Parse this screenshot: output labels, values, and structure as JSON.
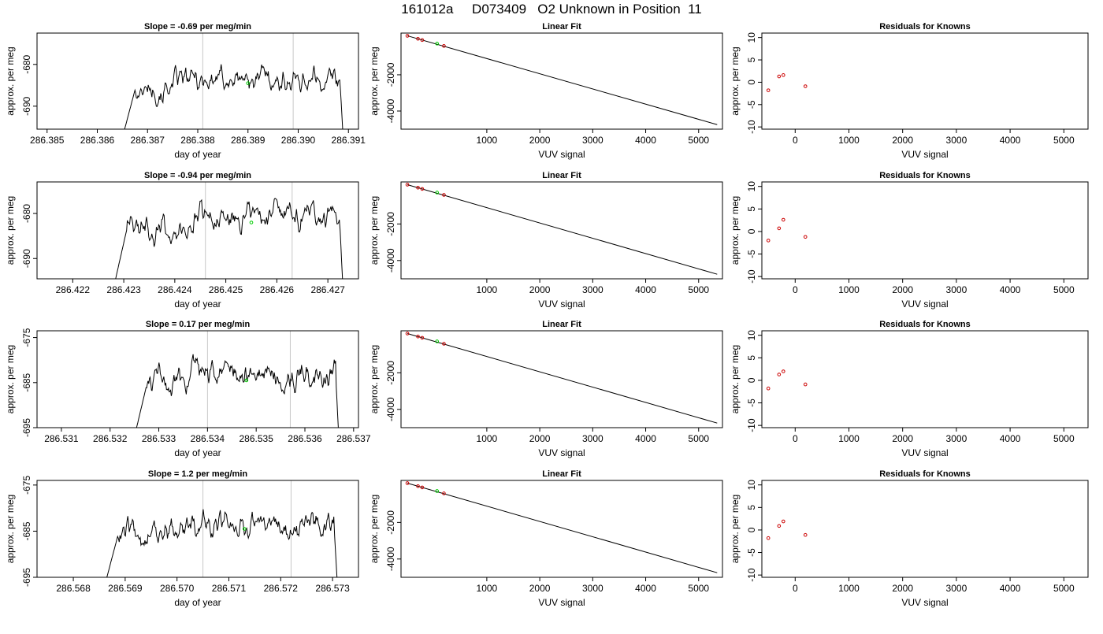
{
  "title": "161012a     D073409   O2 Unknown in Position  11",
  "colors": {
    "trace": "#000000",
    "unknown": "#00cc00",
    "known": "#cc0000",
    "cycle_line": "#c8c8c8",
    "fit_line": "#000000"
  },
  "chart_data": [
    {
      "row": 1,
      "time_panel": {
        "type": "line",
        "title": "Slope =  -0.69  per meg/min",
        "xlabel": "day of year",
        "ylabel": "approx. per meg",
        "xlim": [
          286.3848,
          286.3912
        ],
        "ylim": [
          -695.5,
          -672.5
        ],
        "xticks": [
          "286.385",
          "286.386",
          "286.387",
          "286.388",
          "286.389",
          "286.390",
          "286.391"
        ],
        "yticks": [
          "-680",
          "-690"
        ],
        "trace_start": 286.3865,
        "trace_end": 286.3909,
        "vlines": [
          286.3881,
          286.3899
        ],
        "unknown_point": [
          286.389,
          -684.5
        ]
      },
      "fit_panel": {
        "type": "scatter",
        "title": "Linear Fit",
        "xlabel": "VUV signal",
        "ylabel": "approx. per meg",
        "xlim": [
          -620,
          5450
        ],
        "ylim": [
          -5000,
          300
        ],
        "xticks": [
          "1000",
          "2000",
          "3000",
          "4000",
          "5000"
        ],
        "yticks": [
          "-2000",
          "-4000"
        ],
        "fit_line": [
          [
            -500,
            150
          ],
          [
            5350,
            -4750
          ]
        ],
        "knowns": [
          [
            -500,
            150
          ],
          [
            -300,
            -15
          ],
          [
            -220,
            -85
          ],
          [
            190,
            -410
          ]
        ],
        "unknown": [
          [
            60,
            -280
          ]
        ]
      },
      "residual_panel": {
        "type": "scatter",
        "title": "Residuals for Knowns",
        "xlabel": "VUV signal",
        "ylabel": "approx. per meg",
        "xlim": [
          -620,
          5450
        ],
        "ylim": [
          -10.5,
          11
        ],
        "xticks": [
          "0",
          "1000",
          "2000",
          "3000",
          "4000",
          "5000"
        ],
        "yticks": [
          "10",
          "5",
          "0",
          "-5",
          "-10"
        ],
        "points": [
          [
            -500,
            -1.8
          ],
          [
            -300,
            1.3
          ],
          [
            -220,
            1.6
          ],
          [
            190,
            -0.9
          ]
        ]
      }
    },
    {
      "row": 2,
      "time_panel": {
        "type": "line",
        "title": "Slope =  -0.94  per meg/min",
        "xlabel": "day of year",
        "ylabel": "approx. per meg",
        "xlim": [
          286.4213,
          286.4276
        ],
        "ylim": [
          -694.5,
          -673
        ],
        "xticks": [
          "286.422",
          "286.423",
          "286.424",
          "286.425",
          "286.426",
          "286.427"
        ],
        "yticks": [
          "-680",
          "-690"
        ],
        "trace_start": 286.4228,
        "trace_end": 286.4273,
        "vlines": [
          286.4246,
          286.4263
        ],
        "unknown_point": [
          286.4255,
          -682
        ]
      },
      "fit_panel": {
        "type": "scatter",
        "title": "Linear Fit",
        "xlabel": "VUV signal",
        "ylabel": "approx. per meg",
        "xlim": [
          -620,
          5450
        ],
        "ylim": [
          -5000,
          300
        ],
        "xticks": [
          "1000",
          "2000",
          "3000",
          "4000",
          "5000"
        ],
        "yticks": [
          "-2000",
          "-4000"
        ],
        "fit_line": [
          [
            -500,
            150
          ],
          [
            5350,
            -4750
          ]
        ],
        "knowns": [
          [
            -500,
            150
          ],
          [
            -300,
            -15
          ],
          [
            -220,
            -85
          ],
          [
            190,
            -410
          ]
        ],
        "unknown": [
          [
            60,
            -280
          ]
        ]
      },
      "residual_panel": {
        "type": "scatter",
        "title": "Residuals for Knowns",
        "xlabel": "VUV signal",
        "ylabel": "approx. per meg",
        "xlim": [
          -620,
          5450
        ],
        "ylim": [
          -10.5,
          11
        ],
        "xticks": [
          "0",
          "1000",
          "2000",
          "3000",
          "4000",
          "5000"
        ],
        "yticks": [
          "10",
          "5",
          "0",
          "-5",
          "-10"
        ],
        "points": [
          [
            -500,
            -2.0
          ],
          [
            -300,
            0.7
          ],
          [
            -220,
            2.6
          ],
          [
            190,
            -1.2
          ]
        ]
      }
    },
    {
      "row": 3,
      "time_panel": {
        "type": "line",
        "title": "Slope =  0.17  per meg/min",
        "xlabel": "day of year",
        "ylabel": "approx. per meg",
        "xlim": [
          286.5305,
          286.5371
        ],
        "ylim": [
          -695,
          -673.5
        ],
        "xticks": [
          "286.531",
          "286.532",
          "286.533",
          "286.534",
          "286.535",
          "286.536",
          "286.537"
        ],
        "yticks": [
          "-675",
          "-685",
          "-695"
        ],
        "trace_start": 286.5325,
        "trace_end": 286.5367,
        "vlines": [
          286.534,
          286.5357
        ],
        "unknown_point": [
          286.5348,
          -684.5
        ]
      },
      "fit_panel": {
        "type": "scatter",
        "title": "Linear Fit",
        "xlabel": "VUV signal",
        "ylabel": "approx. per meg",
        "xlim": [
          -620,
          5450
        ],
        "ylim": [
          -5000,
          300
        ],
        "xticks": [
          "1000",
          "2000",
          "3000",
          "4000",
          "5000"
        ],
        "yticks": [
          "-2000",
          "-4000"
        ],
        "fit_line": [
          [
            -500,
            150
          ],
          [
            5350,
            -4750
          ]
        ],
        "knowns": [
          [
            -500,
            150
          ],
          [
            -300,
            -15
          ],
          [
            -220,
            -85
          ],
          [
            190,
            -410
          ]
        ],
        "unknown": [
          [
            60,
            -280
          ]
        ]
      },
      "residual_panel": {
        "type": "scatter",
        "title": "Residuals for Knowns",
        "xlabel": "VUV signal",
        "ylabel": "approx. per meg",
        "xlim": [
          -620,
          5450
        ],
        "ylim": [
          -10.5,
          11
        ],
        "xticks": [
          "0",
          "1000",
          "2000",
          "3000",
          "4000",
          "5000"
        ],
        "yticks": [
          "10",
          "5",
          "0",
          "-5",
          "-10"
        ],
        "points": [
          [
            -500,
            -1.8
          ],
          [
            -300,
            1.3
          ],
          [
            -220,
            2.0
          ],
          [
            190,
            -0.9
          ]
        ]
      }
    },
    {
      "row": 4,
      "time_panel": {
        "type": "line",
        "title": "Slope =  1.2  per meg/min",
        "xlabel": "day of year",
        "ylabel": "approx. per meg",
        "xlim": [
          286.5673,
          286.5735
        ],
        "ylim": [
          -695,
          -674
        ],
        "xticks": [
          "286.568",
          "286.569",
          "286.570",
          "286.571",
          "286.572",
          "286.573"
        ],
        "yticks": [
          "-675",
          "-685",
          "-695"
        ],
        "trace_start": 286.5686,
        "trace_end": 286.5731,
        "vlines": [
          286.5705,
          286.5722
        ],
        "unknown_point": [
          286.5713,
          -684.5
        ]
      },
      "fit_panel": {
        "type": "scatter",
        "title": "Linear Fit",
        "xlabel": "VUV signal",
        "ylabel": "approx. per meg",
        "xlim": [
          -620,
          5450
        ],
        "ylim": [
          -5000,
          300
        ],
        "xticks": [
          "1000",
          "2000",
          "3000",
          "4000",
          "5000"
        ],
        "yticks": [
          "-2000",
          "-4000"
        ],
        "fit_line": [
          [
            -500,
            150
          ],
          [
            5350,
            -4750
          ]
        ],
        "knowns": [
          [
            -500,
            150
          ],
          [
            -300,
            -15
          ],
          [
            -220,
            -85
          ],
          [
            190,
            -410
          ]
        ],
        "unknown": [
          [
            60,
            -280
          ]
        ]
      },
      "residual_panel": {
        "type": "scatter",
        "title": "Residuals for Knowns",
        "xlabel": "VUV signal",
        "ylabel": "approx. per meg",
        "xlim": [
          -620,
          5450
        ],
        "ylim": [
          -10.5,
          11
        ],
        "xticks": [
          "0",
          "1000",
          "2000",
          "3000",
          "4000",
          "5000"
        ],
        "yticks": [
          "10",
          "5",
          "0",
          "-5",
          "-10"
        ],
        "points": [
          [
            -500,
            -1.8
          ],
          [
            -300,
            0.9
          ],
          [
            -220,
            1.9
          ],
          [
            190,
            -1.1
          ]
        ]
      }
    }
  ]
}
